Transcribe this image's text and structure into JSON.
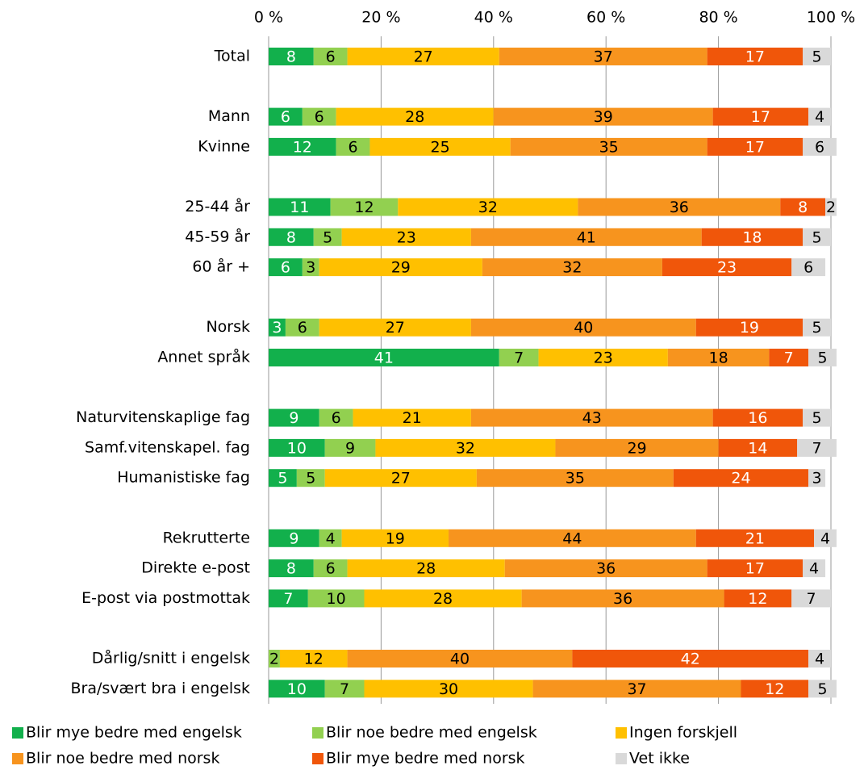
{
  "chart_data": {
    "type": "stacked-barh",
    "categories": [
      "Total",
      null,
      "Mann",
      "Kvinne",
      null,
      "25-44 år",
      "45-59 år",
      "60 år +",
      null,
      "Norsk",
      "Annet språk",
      null,
      "Naturvitenskaplige fag",
      "Samf.vitenskapel. fag",
      "Humanistiske fag",
      null,
      "Rekrutterte",
      "Direkte e-post",
      "E-post via postmottak",
      null,
      "Dårlig/snitt i engelsk",
      "Bra/svært bra i engelsk"
    ],
    "series": [
      {
        "name": "Blir mye bedre med engelsk",
        "color": "#12b04c",
        "label_color": "#ffffff",
        "values": [
          8,
          null,
          6,
          12,
          null,
          11,
          8,
          6,
          null,
          3,
          41,
          null,
          9,
          10,
          5,
          null,
          9,
          8,
          7,
          null,
          null,
          10
        ]
      },
      {
        "name": "Blir noe bedre med engelsk",
        "color": "#92d050",
        "label_color": "#000000",
        "values": [
          6,
          null,
          6,
          6,
          null,
          12,
          5,
          3,
          null,
          6,
          7,
          null,
          6,
          9,
          5,
          null,
          4,
          6,
          10,
          null,
          2,
          7
        ]
      },
      {
        "name": "Ingen forskjell",
        "color": "#ffc000",
        "label_color": "#000000",
        "values": [
          27,
          null,
          28,
          25,
          null,
          32,
          23,
          29,
          null,
          27,
          23,
          null,
          21,
          32,
          27,
          null,
          19,
          28,
          28,
          null,
          12,
          30
        ]
      },
      {
        "name": "Blir noe bedre med norsk",
        "color": "#f7941e",
        "label_color": "#000000",
        "values": [
          37,
          null,
          39,
          35,
          null,
          36,
          41,
          32,
          null,
          40,
          18,
          null,
          43,
          29,
          35,
          null,
          44,
          36,
          36,
          null,
          40,
          37
        ]
      },
      {
        "name": "Blir mye bedre med norsk",
        "color": "#f0560a",
        "label_color": "#ffffff",
        "values": [
          17,
          null,
          17,
          17,
          null,
          8,
          18,
          23,
          null,
          19,
          7,
          null,
          16,
          14,
          24,
          null,
          21,
          17,
          12,
          null,
          42,
          12
        ]
      },
      {
        "name": "Vet ikke",
        "color": "#d9d9d9",
        "label_color": "#000000",
        "values": [
          5,
          null,
          4,
          6,
          null,
          2,
          5,
          6,
          null,
          5,
          5,
          null,
          5,
          7,
          3,
          null,
          4,
          4,
          7,
          null,
          4,
          5
        ]
      }
    ],
    "xlim": [
      0,
      100
    ],
    "xticks": [
      {
        "value": 0,
        "label": "0 %"
      },
      {
        "value": 20,
        "label": "20 %"
      },
      {
        "value": 40,
        "label": "40 %"
      },
      {
        "value": 60,
        "label": "60 %"
      },
      {
        "value": 80,
        "label": "80 %"
      },
      {
        "value": 100,
        "label": "100 %"
      }
    ],
    "grid": true,
    "legend": "bottom"
  }
}
